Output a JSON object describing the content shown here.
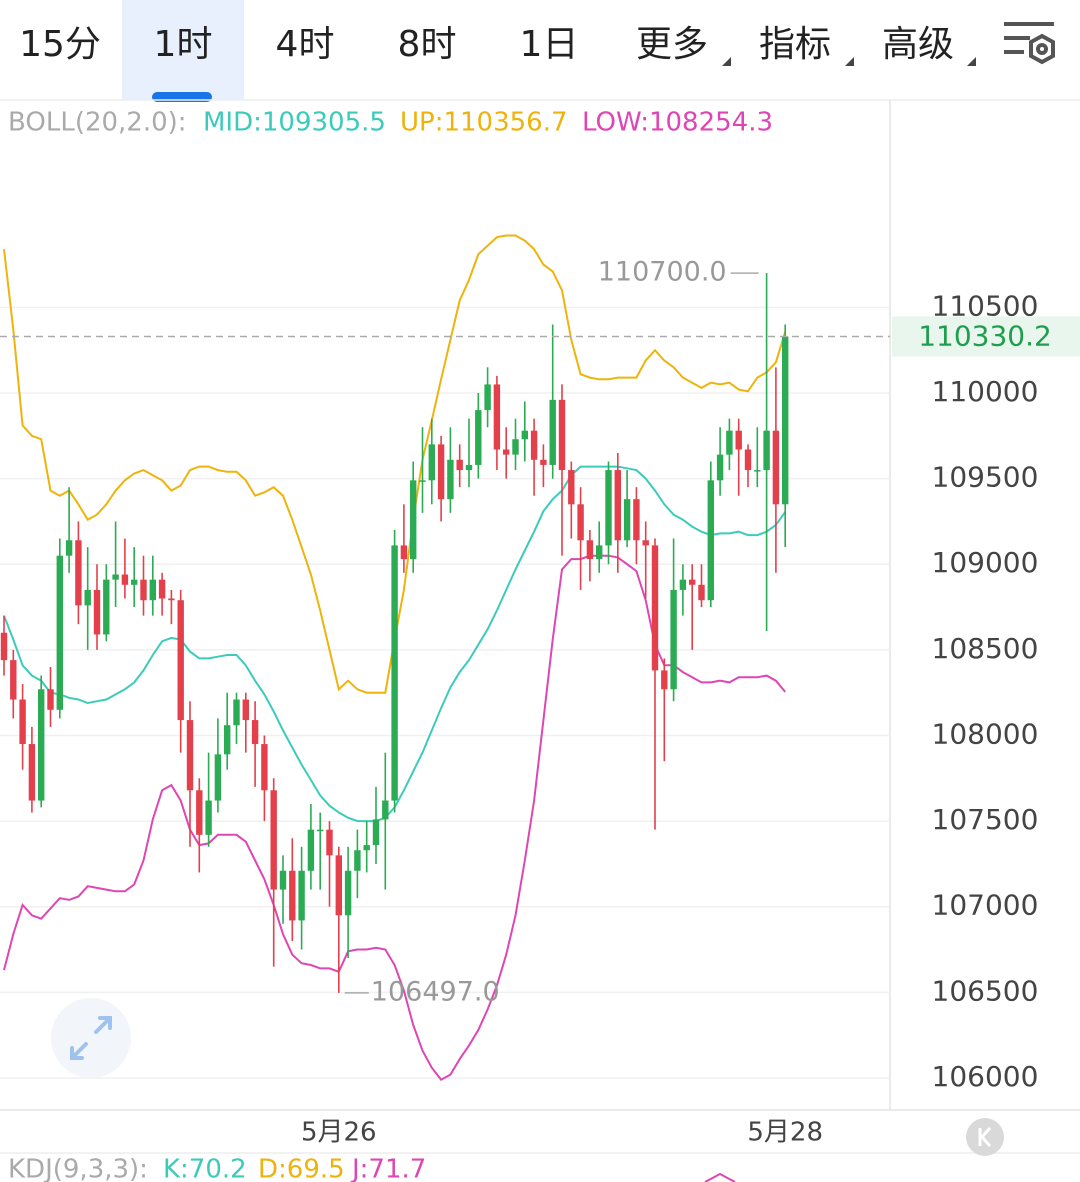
{
  "tabs": [
    "15分",
    "1时",
    "4时",
    "8时",
    "1日",
    "更多",
    "指标",
    "高级"
  ],
  "active_tab": 1,
  "chart_data": {
    "type": "candlestick",
    "indicator": "BOLL(20,2.0):",
    "categories": [
      null,
      null,
      null,
      null,
      null,
      null,
      null,
      null,
      null,
      null,
      null,
      null,
      null,
      null,
      null,
      null,
      null,
      null,
      null,
      null,
      null,
      null,
      null,
      null,
      null,
      null,
      null,
      null,
      null,
      null,
      null,
      null,
      null,
      null,
      null,
      null,
      "5月26",
      null,
      null,
      null,
      null,
      null,
      null,
      null,
      null,
      null,
      null,
      null,
      null,
      null,
      null,
      null,
      null,
      null,
      null,
      null,
      null,
      null,
      null,
      null,
      null,
      null,
      null,
      null,
      null,
      null,
      null,
      null,
      null,
      null,
      null,
      null,
      null,
      null,
      null,
      null,
      null,
      null,
      null,
      null,
      null,
      null,
      null,
      null,
      "5月28"
    ],
    "open": [
      108600,
      108440,
      108210,
      107950,
      107620,
      108270,
      108150,
      109050,
      109140,
      108760,
      108850,
      108590,
      108910,
      108940,
      108880,
      108910,
      108790,
      108910,
      108800,
      108790,
      108090,
      107680,
      107420,
      107620,
      107890,
      108060,
      108210,
      108090,
      107950,
      107680,
      107100,
      107210,
      106920,
      107210,
      107450,
      107450,
      107300,
      106950,
      107210,
      107330,
      107360,
      107510,
      107620,
      109110,
      109030,
      109490,
      109490,
      109700,
      109380,
      109610,
      109550,
      109580,
      109900,
      110050,
      109670,
      109640,
      109730,
      109780,
      109610,
      109580,
      109960,
      109550,
      109350,
      109140,
      109030,
      109110,
      109550,
      109140,
      109380,
      109140,
      109110,
      108380,
      108270,
      108850,
      108910,
      108880,
      108790,
      109490,
      109640,
      109780,
      109670,
      109550,
      109550,
      109780,
      109350
    ],
    "high": [
      108700,
      108500,
      108300,
      108050,
      108350,
      108400,
      109150,
      109450,
      109250,
      109100,
      109000,
      109000,
      109250,
      109150,
      109100,
      109050,
      109050,
      108950,
      108850,
      108850,
      108200,
      107750,
      107900,
      108100,
      108250,
      108250,
      108250,
      108200,
      108000,
      107750,
      107300,
      107400,
      107350,
      107600,
      107550,
      107500,
      107350,
      107350,
      107450,
      107500,
      107700,
      107900,
      109200,
      109350,
      109600,
      109800,
      109850,
      109750,
      109800,
      109700,
      109850,
      110000,
      110150,
      110100,
      109800,
      109850,
      109950,
      109850,
      109700,
      110400,
      110050,
      109600,
      109450,
      109200,
      109250,
      109600,
      109650,
      109550,
      109450,
      109250,
      109150,
      108450,
      109150,
      109000,
      109000,
      109000,
      109600,
      109800,
      109850,
      109850,
      109700,
      109800,
      110700,
      110150,
      110400
    ],
    "low": [
      108350,
      108100,
      107800,
      107550,
      107580,
      108050,
      108100,
      108950,
      108650,
      108500,
      108500,
      108550,
      108750,
      108800,
      108750,
      108700,
      108700,
      108700,
      108650,
      107900,
      107350,
      107200,
      107350,
      107550,
      107800,
      107950,
      107900,
      107700,
      107500,
      106650,
      106900,
      106800,
      106750,
      107100,
      107100,
      107000,
      106497,
      106700,
      107050,
      107200,
      107250,
      107100,
      107550,
      108950,
      108950,
      109300,
      109350,
      109250,
      109300,
      109450,
      109450,
      109500,
      109800,
      109550,
      109500,
      109550,
      109600,
      109400,
      109450,
      109500,
      109050,
      109150,
      108850,
      108900,
      108950,
      109000,
      108950,
      109100,
      109000,
      108800,
      107450,
      107850,
      108200,
      108700,
      108500,
      108750,
      108750,
      109400,
      109550,
      109400,
      109450,
      109450,
      108610,
      108950,
      109100
    ],
    "close": [
      108440,
      108210,
      107950,
      107620,
      108270,
      108150,
      109050,
      109140,
      108760,
      108850,
      108590,
      108910,
      108940,
      108880,
      108910,
      108790,
      108910,
      108800,
      108790,
      108090,
      107680,
      107420,
      107620,
      107890,
      108060,
      108210,
      108090,
      107950,
      107680,
      107100,
      107210,
      106920,
      107210,
      107450,
      107450,
      107300,
      106950,
      107210,
      107330,
      107360,
      107510,
      107620,
      109110,
      109030,
      109490,
      109490,
      109700,
      109380,
      109610,
      109550,
      109580,
      109900,
      110050,
      109670,
      109640,
      109730,
      109780,
      109610,
      109580,
      109960,
      109550,
      109350,
      109140,
      109030,
      109110,
      109550,
      109140,
      109380,
      109140,
      109110,
      108380,
      108270,
      108850,
      108910,
      108880,
      108790,
      109490,
      109640,
      109780,
      109670,
      109550,
      109550,
      109780,
      109350,
      110330.2
    ],
    "up_color": "#2bab54",
    "down_color": "#e3404c",
    "series": [
      {
        "name": "MID:109305.5",
        "color": "#3ccbbb",
        "values": [
          108700,
          108560,
          108410,
          108350,
          108320,
          108250,
          108240,
          108220,
          108210,
          108190,
          108200,
          108210,
          108240,
          108270,
          108310,
          108380,
          108470,
          108550,
          108570,
          108560,
          108490,
          108450,
          108450,
          108460,
          108470,
          108470,
          108410,
          108320,
          108240,
          108140,
          108030,
          107930,
          107830,
          107740,
          107650,
          107590,
          107550,
          107520,
          107500,
          107500,
          107500,
          107520,
          107580,
          107680,
          107790,
          107900,
          108030,
          108160,
          108280,
          108370,
          108440,
          108530,
          108620,
          108730,
          108850,
          108970,
          109080,
          109190,
          109310,
          109380,
          109430,
          109520,
          109570,
          109570,
          109570,
          109570,
          109570,
          109560,
          109550,
          109500,
          109430,
          109350,
          109290,
          109260,
          109220,
          109190,
          109170,
          109180,
          109180,
          109190,
          109170,
          109170,
          109190,
          109230,
          109305.5
        ]
      },
      {
        "name": "UP:110356.7",
        "color": "#eeb30c",
        "values": [
          110840,
          110370,
          109810,
          109750,
          109730,
          109430,
          109400,
          109430,
          109350,
          109260,
          109290,
          109350,
          109430,
          109490,
          109530,
          109550,
          109520,
          109490,
          109430,
          109460,
          109550,
          109570,
          109570,
          109550,
          109540,
          109540,
          109490,
          109400,
          109420,
          109450,
          109400,
          109260,
          109100,
          108940,
          108730,
          108500,
          108270,
          108320,
          108270,
          108250,
          108250,
          108250,
          108560,
          108850,
          109260,
          109610,
          109840,
          110080,
          110310,
          110540,
          110660,
          110810,
          110860,
          110910,
          110920,
          110920,
          110890,
          110840,
          110750,
          110710,
          110600,
          110310,
          110110,
          110090,
          110080,
          110080,
          110090,
          110090,
          110090,
          110190,
          110250,
          110190,
          110150,
          110090,
          110060,
          110030,
          110060,
          110050,
          110060,
          110020,
          110010,
          110090,
          110120,
          110180,
          110356.7
        ]
      },
      {
        "name": "LOW:108254.3",
        "color": "#dd46b4",
        "values": [
          106630,
          106840,
          107010,
          106950,
          106930,
          106990,
          107050,
          107040,
          107060,
          107120,
          107110,
          107100,
          107090,
          107090,
          107130,
          107270,
          107510,
          107680,
          107710,
          107620,
          107450,
          107360,
          107370,
          107420,
          107420,
          107420,
          107380,
          107270,
          107160,
          107010,
          106840,
          106720,
          106670,
          106660,
          106640,
          106640,
          106620,
          106740,
          106750,
          106750,
          106760,
          106750,
          106660,
          106510,
          106310,
          106160,
          106060,
          105990,
          106020,
          106110,
          106190,
          106280,
          106400,
          106540,
          106720,
          106950,
          107270,
          107620,
          108090,
          108560,
          108970,
          109030,
          109030,
          109050,
          109050,
          109050,
          109040,
          109000,
          108960,
          108790,
          108530,
          108410,
          108410,
          108370,
          108340,
          108310,
          108310,
          108320,
          108310,
          108340,
          108340,
          108340,
          108350,
          108320,
          108254.3
        ]
      }
    ],
    "max_label": "110700.0",
    "min_label": "106497.0",
    "last_label": "110330.2",
    "last_color": "#1f9e4e",
    "ylim": [
      105813,
      111711
    ],
    "yticks": [
      106000,
      106500,
      107000,
      107500,
      108000,
      108500,
      109000,
      109500,
      110000,
      110500
    ],
    "grid": true
  },
  "kdj": {
    "title": "KDJ(9,3,3):",
    "items": [
      {
        "text": "K:70.2",
        "color": "#3ccbbb"
      },
      {
        "text": "D:69.5",
        "color": "#eeb30c"
      },
      {
        "text": "J:71.7",
        "color": "#dd46b4"
      }
    ]
  }
}
